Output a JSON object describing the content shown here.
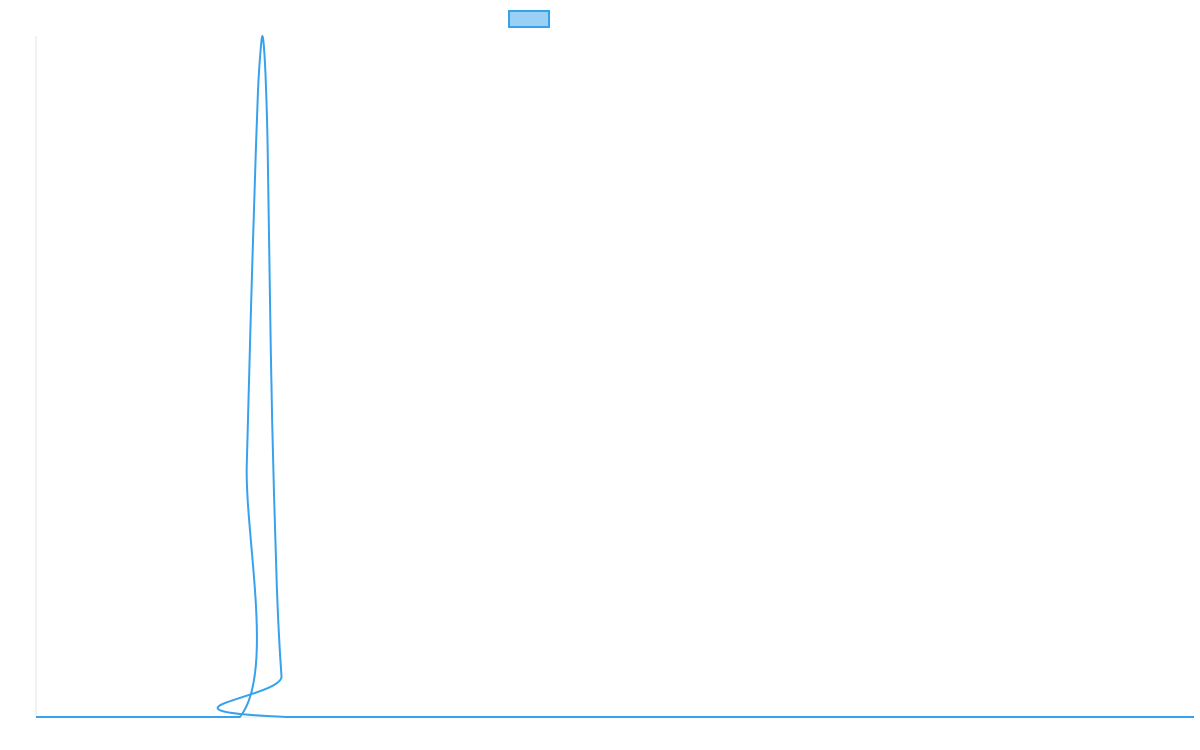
{
  "chart_data": {
    "type": "line",
    "title": "",
    "xlabel": "",
    "ylabel": "",
    "x_range": [
      0,
      100
    ],
    "ylim": [
      0,
      1
    ],
    "grid": false,
    "legend": {
      "placement": "top-center",
      "entries": [
        {
          "name": "",
          "color": "#36a2eb",
          "fill": "rgba(54,162,235,0.5)"
        }
      ]
    },
    "series": [
      {
        "name": "",
        "color": "#36a2eb",
        "x": [
          0,
          17.6,
          18.2,
          18.6,
          19.0,
          19.2,
          19.4,
          19.55,
          19.7,
          19.85,
          20.0,
          20.2,
          20.4,
          20.8,
          21.2,
          21.6,
          100
        ],
        "y": [
          0,
          0,
          0.37,
          0.62,
          0.84,
          0.93,
          0.98,
          1.0,
          0.98,
          0.93,
          0.84,
          0.62,
          0.43,
          0.19,
          0.06,
          0,
          0
        ]
      }
    ]
  }
}
